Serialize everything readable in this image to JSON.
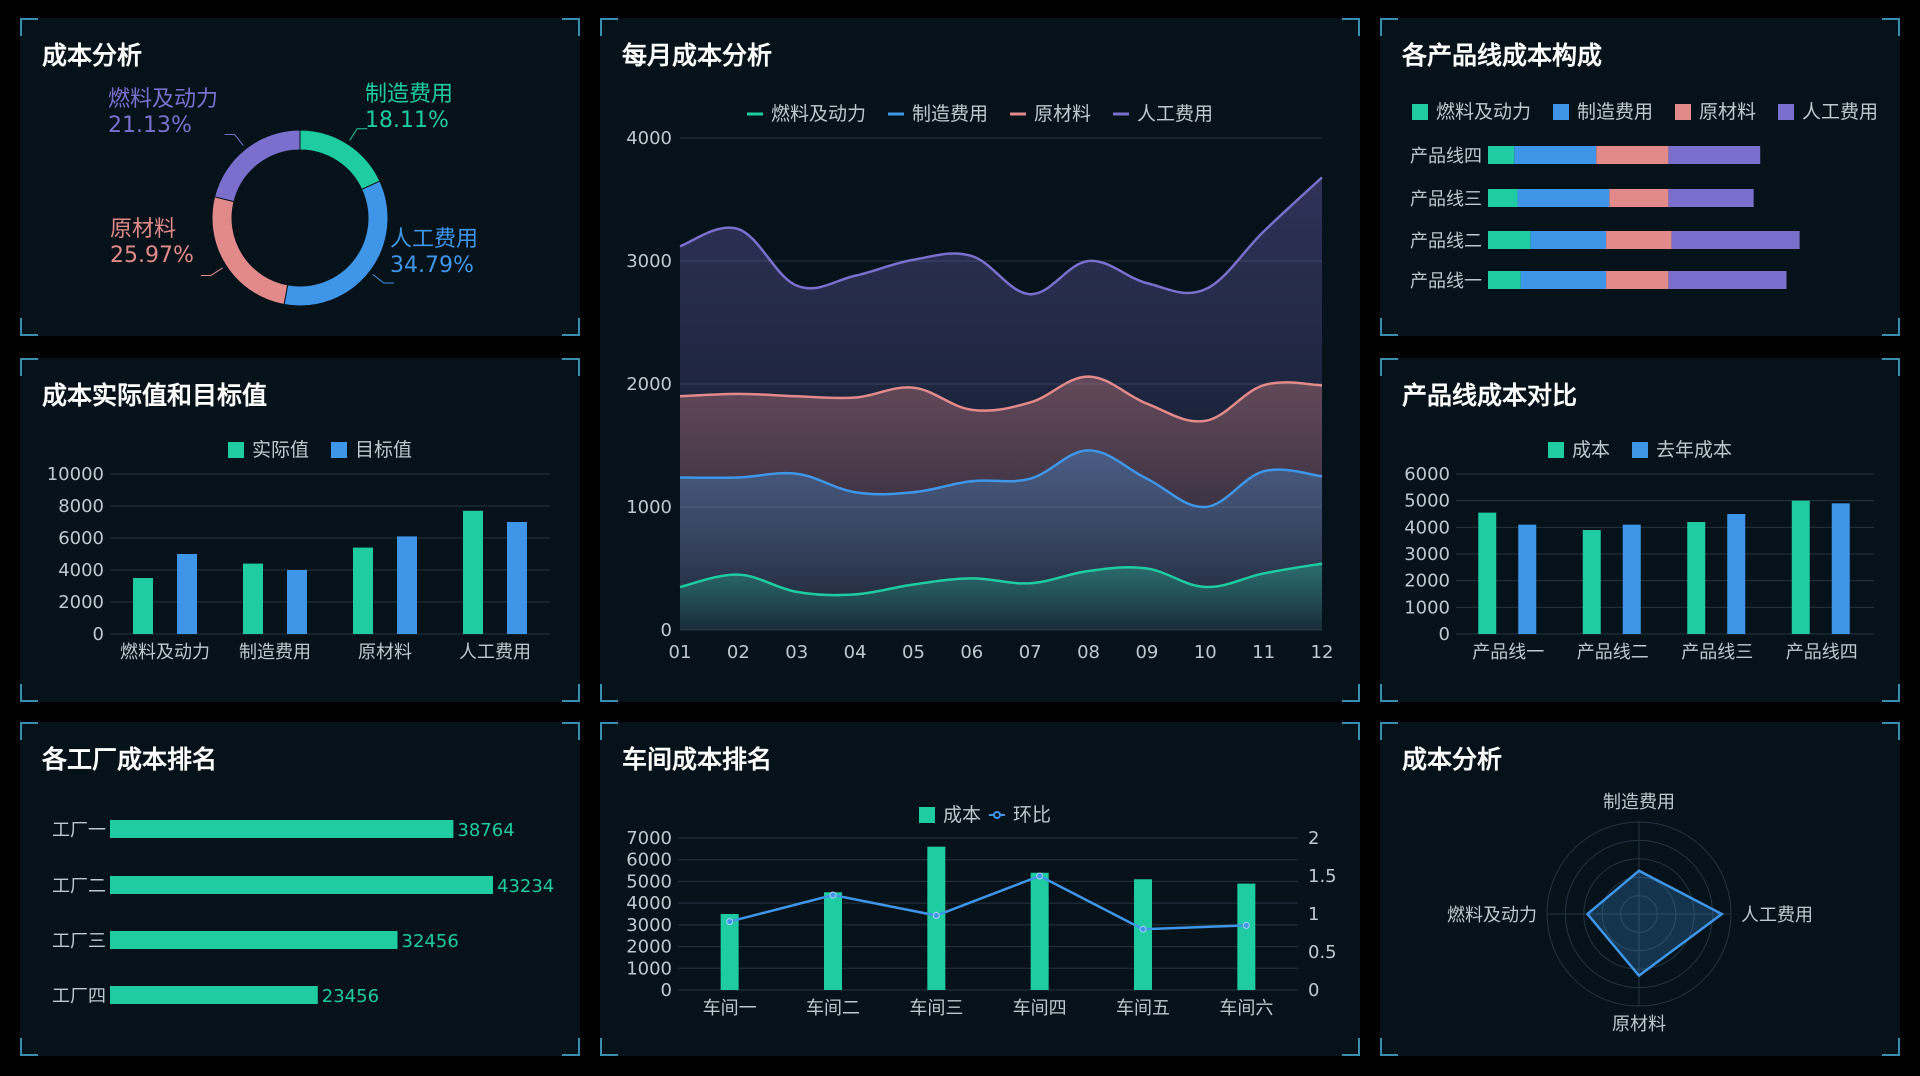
{
  "colors": {
    "fuel": "#1fcba1",
    "mfg": "#3f96e8",
    "raw": "#e28a8a",
    "labor": "#7a6fcc",
    "axis_text": "#bfc8cf",
    "grid": "#243440",
    "line_series": "#3f96e8"
  },
  "panels": {
    "p1_title": "成本分析",
    "p2_title": "每月成本分析",
    "p3_title": "各产品线成本构成",
    "p4_title": "成本实际值和目标值",
    "p5_title": "产品线成本对比",
    "p6_title": "各工厂成本排名",
    "p7_title": "车间成本排名",
    "p8_title": "成本分析"
  },
  "chart_data": [
    {
      "id": "donut",
      "type": "pie",
      "slices": [
        {
          "name": "制造费用",
          "value": 18.11,
          "label": "18.11%",
          "color": "#1fcba1"
        },
        {
          "name": "人工费用",
          "value": 34.79,
          "label": "34.79%",
          "color": "#3f96e8"
        },
        {
          "name": "原材料",
          "value": 25.97,
          "label": "25.97%",
          "color": "#e28a8a"
        },
        {
          "name": "燃料及动力",
          "value": 21.13,
          "label": "21.13%",
          "color": "#7a6fcc"
        }
      ]
    },
    {
      "id": "monthly",
      "type": "area",
      "categories": [
        "01",
        "02",
        "03",
        "04",
        "05",
        "06",
        "07",
        "08",
        "09",
        "10",
        "11",
        "12"
      ],
      "ylim": [
        0,
        4000
      ],
      "yticks": [
        0,
        1000,
        2000,
        3000,
        4000
      ],
      "series": [
        {
          "name": "燃料及动力",
          "color": "#1fcba1",
          "values": [
            350,
            450,
            310,
            290,
            370,
            420,
            380,
            480,
            500,
            350,
            460,
            540
          ]
        },
        {
          "name": "制造费用",
          "color": "#3f96e8",
          "values": [
            1240,
            1240,
            1270,
            1120,
            1120,
            1210,
            1230,
            1460,
            1230,
            1000,
            1290,
            1250
          ]
        },
        {
          "name": "原材料",
          "color": "#e28a8a",
          "values": [
            1900,
            1920,
            1900,
            1890,
            1970,
            1790,
            1850,
            2060,
            1840,
            1700,
            1990,
            1990
          ]
        },
        {
          "name": "人工费用",
          "color": "#7a6fcc",
          "values": [
            3120,
            3260,
            2800,
            2880,
            3010,
            3040,
            2730,
            3000,
            2820,
            2770,
            3240,
            3680
          ]
        }
      ]
    },
    {
      "id": "product_stack",
      "type": "bar",
      "orientation": "horizontal",
      "stacked": true,
      "categories": [
        "产品线一",
        "产品线二",
        "产品线三",
        "产品线四"
      ],
      "series": [
        {
          "name": "燃料及动力",
          "color": "#1fcba1",
          "values": [
            10,
            13,
            9,
            8
          ]
        },
        {
          "name": "制造费用",
          "color": "#3f96e8",
          "values": [
            26,
            23,
            28,
            25
          ]
        },
        {
          "name": "原材料",
          "color": "#e28a8a",
          "values": [
            19,
            20,
            18,
            22
          ]
        },
        {
          "name": "人工费用",
          "color": "#7a6fcc",
          "values": [
            36,
            39,
            26,
            28
          ]
        }
      ]
    },
    {
      "id": "actual_target",
      "type": "bar",
      "categories": [
        "燃料及动力",
        "制造费用",
        "原材料",
        "人工费用"
      ],
      "ylim": [
        0,
        10000
      ],
      "yticks": [
        0,
        2000,
        4000,
        6000,
        8000,
        10000
      ],
      "series": [
        {
          "name": "实际值",
          "color": "#1fcba1",
          "values": [
            3500,
            4400,
            5400,
            7700
          ]
        },
        {
          "name": "目标值",
          "color": "#3f96e8",
          "values": [
            5000,
            4000,
            6100,
            7000
          ]
        }
      ]
    },
    {
      "id": "product_compare",
      "type": "bar",
      "categories": [
        "产品线一",
        "产品线二",
        "产品线三",
        "产品线四"
      ],
      "ylim": [
        0,
        6000
      ],
      "yticks": [
        0,
        1000,
        2000,
        3000,
        4000,
        5000,
        6000
      ],
      "series": [
        {
          "name": "成本",
          "color": "#1fcba1",
          "values": [
            4550,
            3900,
            4200,
            5000
          ]
        },
        {
          "name": "去年成本",
          "color": "#3f96e8",
          "values": [
            4100,
            4100,
            4500,
            4900
          ]
        }
      ]
    },
    {
      "id": "factory_rank",
      "type": "bar",
      "orientation": "horizontal",
      "categories": [
        "工厂一",
        "工厂二",
        "工厂三",
        "工厂四"
      ],
      "xlim": [
        0,
        50000
      ],
      "values": [
        38764,
        43234,
        32456,
        23456
      ],
      "labels": [
        "38764",
        "43234",
        "32456",
        "23456"
      ],
      "color": "#1fcba1"
    },
    {
      "id": "workshop",
      "type": "bar",
      "categories": [
        "车间一",
        "车间二",
        "车间三",
        "车间四",
        "车间五",
        "车间六"
      ],
      "ylim": [
        0,
        7000
      ],
      "yticks": [
        0,
        1000,
        2000,
        3000,
        4000,
        5000,
        6000,
        7000
      ],
      "y2lim": [
        0,
        2
      ],
      "y2ticks": [
        "0",
        "0.5",
        "1",
        "1.5",
        "2"
      ],
      "series": [
        {
          "name": "成本",
          "type": "bar",
          "color": "#1fcba1",
          "values": [
            3500,
            4500,
            6600,
            5400,
            5100,
            4900
          ]
        },
        {
          "name": "环比",
          "type": "line",
          "color": "#3f96e8",
          "values": [
            0.9,
            1.25,
            0.98,
            1.5,
            0.8,
            0.85
          ]
        }
      ]
    },
    {
      "id": "radar",
      "type": "radar",
      "indicators": [
        "制造费用",
        "人工费用",
        "原材料",
        "燃料及动力"
      ],
      "values": [
        0.47,
        0.9,
        0.67,
        0.56
      ],
      "color": "#3f96e8"
    }
  ]
}
